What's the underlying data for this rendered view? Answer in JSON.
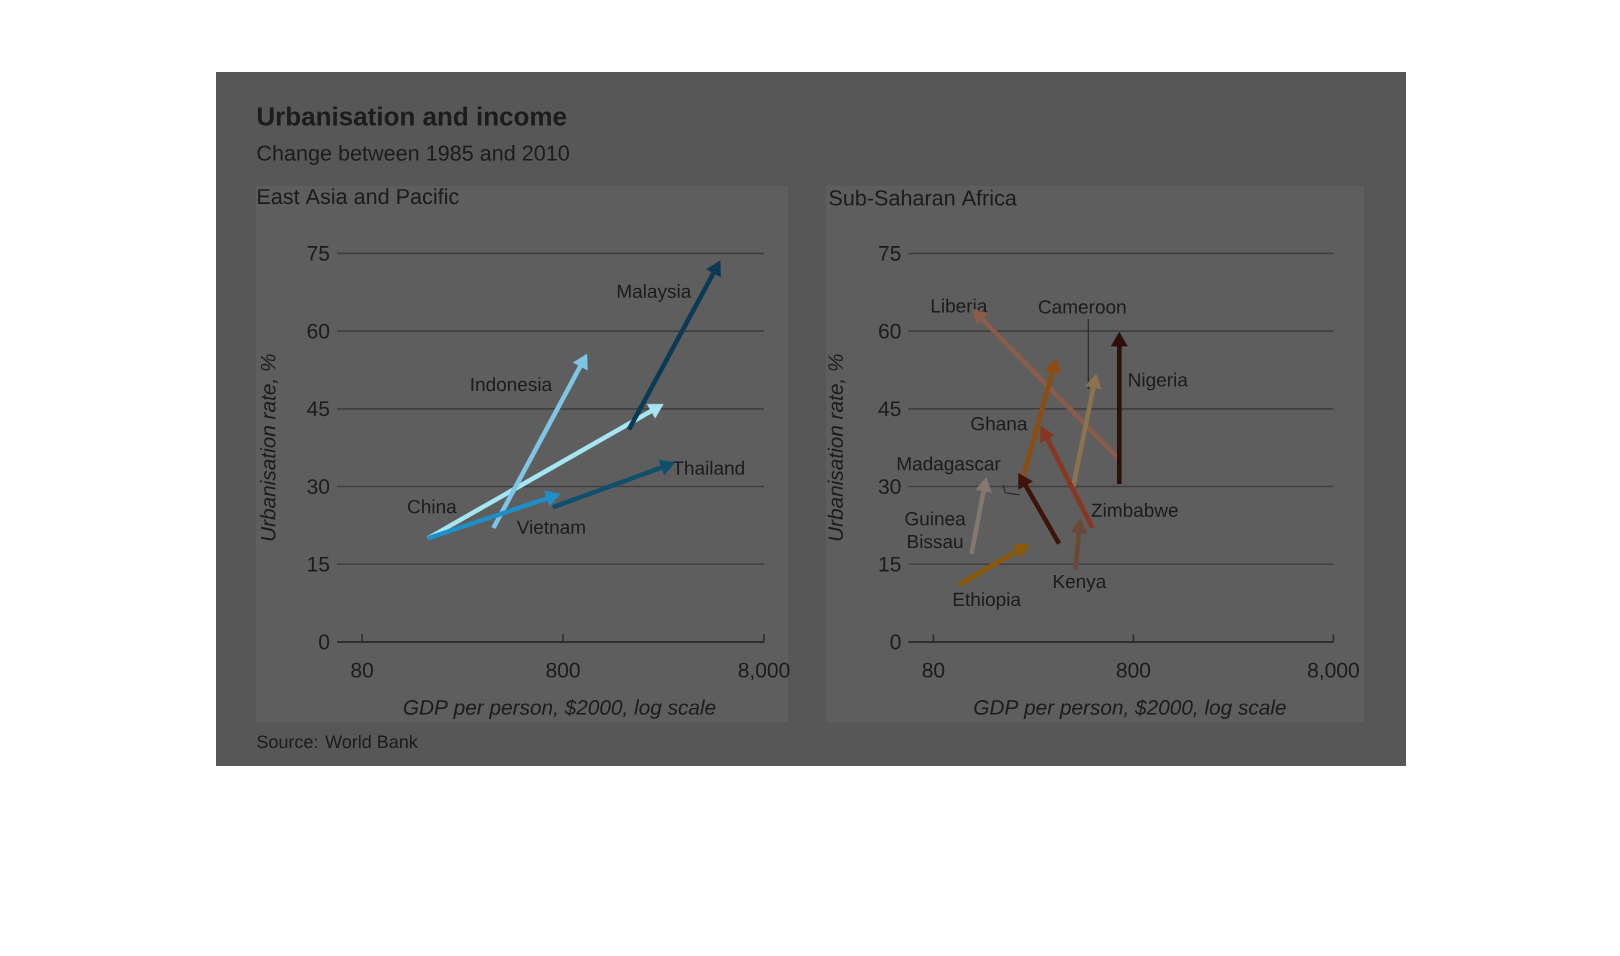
{
  "chart_data": [
    {
      "type": "line",
      "title": "Urbanisation and income",
      "subtitle": "Change between 1985 and 2010",
      "annotations": [
        "East Asia and Pacific",
        "Source: World Bank"
      ],
      "xlabel": "GDP per person, $2000, log scale",
      "ylabel": "Urbanisation rate, %",
      "log": "x",
      "xlim": [
        60,
        8000
      ],
      "xticks": [
        80,
        800,
        {
          "value": 8000,
          "label": "8,000"
        }
      ],
      "ylim": [
        0,
        75
      ],
      "yticks": [
        0,
        15,
        30,
        45,
        60,
        75
      ],
      "grid": "y",
      "marker": "triangle",
      "series": [
        {
          "name": "China",
          "color": "#a6e6f2",
          "x": [
            170,
            2300
          ],
          "values": [
            20,
            45
          ]
        },
        {
          "name": "Indonesia",
          "color": "#7ec6e6",
          "x": [
            360,
            1000
          ],
          "values": [
            22,
            54
          ]
        },
        {
          "name": "Vietnam",
          "color": "#1f8fc7",
          "x": [
            170,
            700
          ],
          "values": [
            20,
            28
          ]
        },
        {
          "name": "Thailand",
          "color": "#0f4f6b",
          "x": [
            710,
            2600
          ],
          "values": [
            26,
            34
          ]
        },
        {
          "name": "Malaysia",
          "color": "#0b3a56",
          "x": [
            1700,
            4600
          ],
          "values": [
            41,
            72
          ]
        }
      ]
    },
    {
      "type": "line",
      "title": "Sub-Saharan Africa",
      "xlabel": "GDP per person, $2000, log scale",
      "ylabel": "Urbanisation rate, %",
      "log": "x",
      "xlim": [
        60,
        8000
      ],
      "xticks": [
        80,
        800,
        {
          "value": 8000,
          "label": "8,000"
        }
      ],
      "ylim": [
        0,
        75
      ],
      "yticks": [
        0,
        15,
        30,
        45,
        60,
        75
      ],
      "grid": "y",
      "marker": "triangle",
      "series": [
        {
          "name": "Liberia",
          "color": "#8a5c4c",
          "x": [
            690,
            135
          ],
          "values": [
            35,
            63
          ]
        },
        {
          "name": "Cameroon",
          "color": "#8c7250",
          "x": [
            400,
            510
          ],
          "values": [
            30,
            50
          ]
        },
        {
          "name": "Nigeria",
          "color": "#2b0f08",
          "x": [
            680,
            680
          ],
          "values": [
            30.5,
            58
          ]
        },
        {
          "name": "Ghana",
          "color": "#8e4d10",
          "x": [
            220,
            320
          ],
          "values": [
            30.5,
            53
          ]
        },
        {
          "name": "Madagascar",
          "color": "#3d130a",
          "x": [
            340,
            225
          ],
          "values": [
            19,
            31
          ]
        },
        {
          "name": "Guinea Bissau",
          "color": "#857870",
          "x": [
            124,
            144
          ],
          "values": [
            17,
            30
          ]
        },
        {
          "name": "Zimbabwe",
          "color": "#8a3520",
          "x": [
            500,
            290
          ],
          "values": [
            22,
            40
          ]
        },
        {
          "name": "Kenya",
          "color": "#6b4838",
          "x": [
            410,
            430
          ],
          "values": [
            14,
            22
          ]
        },
        {
          "name": "Ethiopia",
          "color": "#8c5a06",
          "x": [
            107,
            220
          ],
          "values": [
            11,
            18
          ]
        }
      ]
    }
  ]
}
